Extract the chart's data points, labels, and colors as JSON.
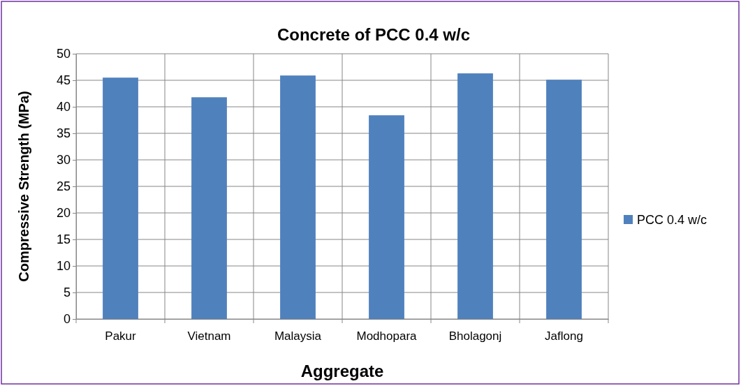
{
  "chart_data": {
    "type": "bar",
    "title": "Concrete of PCC 0.4 w/c",
    "xlabel": "Aggregate",
    "ylabel": "Compressive Strength (MPa)",
    "categories": [
      "Pakur",
      "Vietnam",
      "Malaysia",
      "Modhopara",
      "Bholagonj",
      "Jaflong"
    ],
    "series": [
      {
        "name": "PCC 0.4 w/c",
        "color": "#4f81bd",
        "values": [
          45.5,
          41.8,
          45.9,
          38.4,
          46.3,
          45.1
        ]
      }
    ],
    "ylim": [
      0,
      50
    ],
    "yticks": [
      0,
      5,
      10,
      15,
      20,
      25,
      30,
      35,
      40,
      45,
      50
    ],
    "grid": true,
    "legend": "right"
  }
}
